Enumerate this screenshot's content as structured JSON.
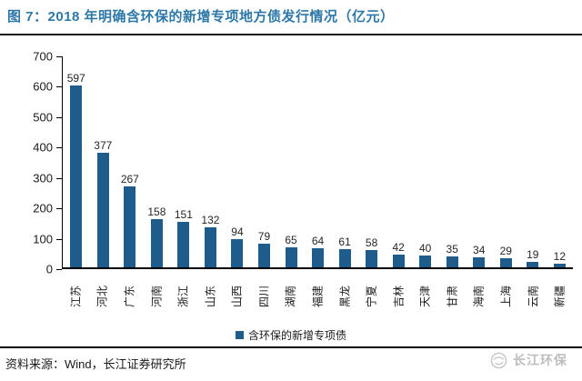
{
  "header": {
    "title": "图 7：2018 年明确含环保的新增专项地方债发行情况（亿元）"
  },
  "chart_data": {
    "type": "bar",
    "title": "2018 年明确含环保的新增专项地方债发行情况（亿元）",
    "categories": [
      "江苏",
      "河北",
      "广东",
      "河南",
      "浙江",
      "山东",
      "山西",
      "四川",
      "湖南",
      "福建",
      "黑龙",
      "宁夏",
      "吉林",
      "天津",
      "甘肃",
      "海南",
      "上海",
      "云南",
      "新疆"
    ],
    "values": [
      597,
      377,
      267,
      158,
      151,
      132,
      94,
      79,
      65,
      64,
      61,
      58,
      42,
      40,
      35,
      34,
      29,
      19,
      12
    ],
    "ylim": [
      0,
      700
    ],
    "yticks": [
      0,
      100,
      200,
      300,
      400,
      500,
      600,
      700
    ],
    "xlabel": "",
    "ylabel": "",
    "grid": false,
    "data_labels": true,
    "legend": [
      "含环保的新增专项债"
    ],
    "legend_position": "bottom",
    "x_label_rotation": -90
  },
  "legend": {
    "label": "含环保的新增专项债"
  },
  "footer": {
    "source": "资料来源：Wind，长江证券研究所",
    "watermark": "长江环保"
  },
  "colors": {
    "title": "#2e78a8",
    "bar": "#1f5c8b",
    "axis": "#000000",
    "watermark": "#c6c6c6"
  }
}
